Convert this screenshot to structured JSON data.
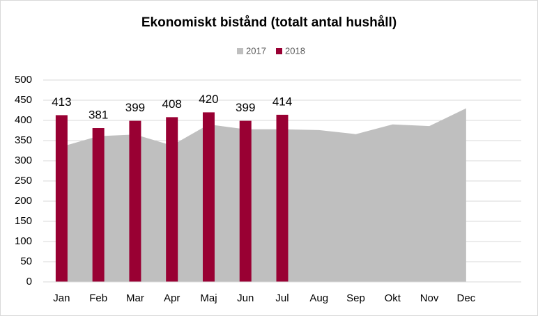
{
  "chart_data": {
    "type": "combo",
    "title": "Ekonomiskt bistånd (totalt antal hushåll)",
    "categories": [
      "Jan",
      "Feb",
      "Mar",
      "Apr",
      "Maj",
      "Jun",
      "Jul",
      "Aug",
      "Sep",
      "Okt",
      "Nov",
      "Dec"
    ],
    "series": [
      {
        "name": "2017",
        "type": "area",
        "color": "#bfbfbf",
        "values": [
          335,
          361,
          365,
          338,
          390,
          378,
          378,
          376,
          366,
          390,
          386,
          430
        ]
      },
      {
        "name": "2018",
        "type": "bar",
        "color": "#990033",
        "values": [
          413,
          381,
          399,
          408,
          420,
          399,
          414,
          null,
          null,
          null,
          null,
          null
        ]
      }
    ],
    "ylim": [
      0,
      500
    ],
    "yticks": [
      0,
      50,
      100,
      150,
      200,
      250,
      300,
      350,
      400,
      450,
      500
    ],
    "grid": true,
    "legend": "top"
  }
}
